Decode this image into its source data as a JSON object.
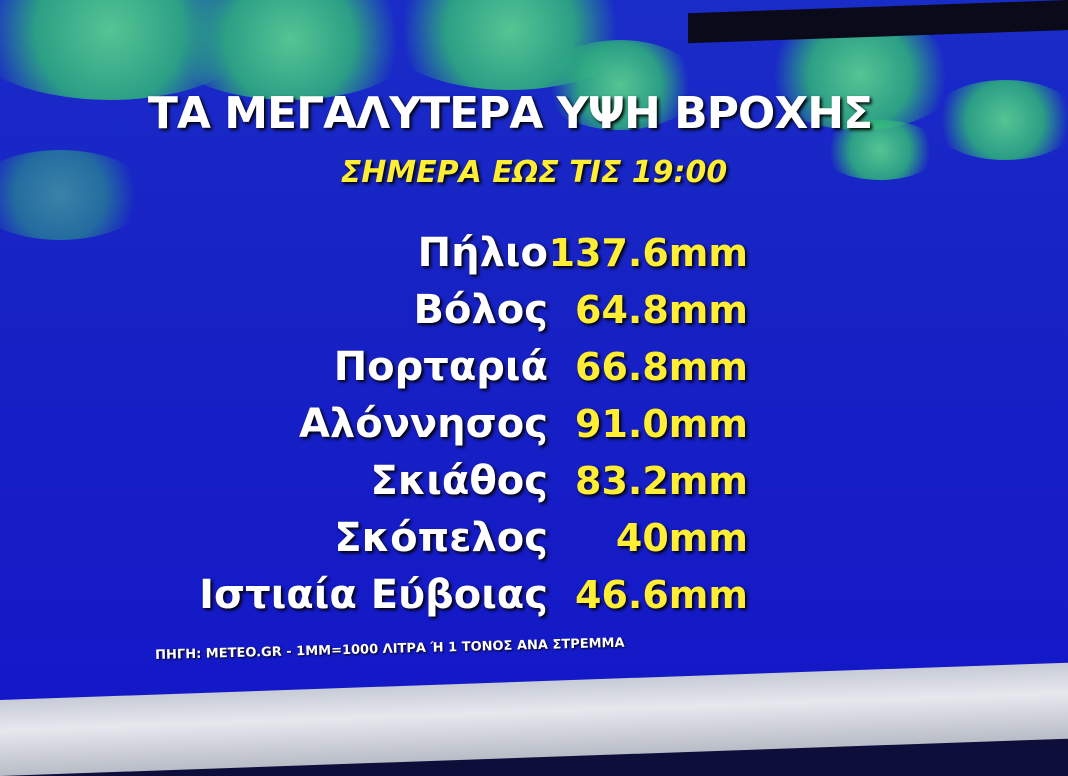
{
  "title": "ΤΑ ΜΕΓΑΛΥΤΕΡΑ ΥΨΗ ΒΡΟΧΗΣ",
  "subtitle": "ΣΗΜΕΡΑ ΕΩΣ ΤΙΣ 19:00",
  "rows": [
    {
      "place": "Πήλιο",
      "value": "137.6mm"
    },
    {
      "place": "Βόλος",
      "value": "64.8mm"
    },
    {
      "place": "Πορταριά",
      "value": "66.8mm"
    },
    {
      "place": "Αλόννησος",
      "value": "91.0mm"
    },
    {
      "place": "Σκιάθος",
      "value": "83.2mm"
    },
    {
      "place": "Σκόπελος",
      "value": "40mm"
    },
    {
      "place": "Ιστιαία Εύβοιας",
      "value": "46.6mm"
    }
  ],
  "source": "ΠΗΓΗ: METEO.GR - 1MM=1000 ΛΙΤΡΑ Ή 1 ΤΟΝΟΣ ΑΝΑ ΣΤΡΕΜΜΑ",
  "colors": {
    "background": "#1722c4",
    "accent": "#ffee33",
    "text": "#ffffff"
  }
}
